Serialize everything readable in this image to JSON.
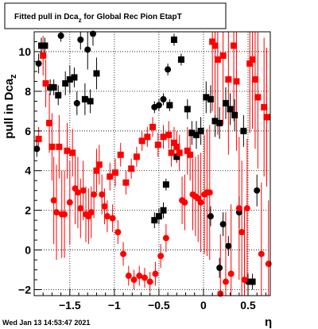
{
  "chart_data": {
    "type": "scatter",
    "title": "Fitted pull in Dca",
    "title_subscript": "z",
    "title_suffix": " for Global Rec Pion EtapT",
    "ylabel": "pull in Dca",
    "ylabel_subscript": "z",
    "xlabel": "η",
    "timestamp": "Wed Jan 13 14:53:47 2021",
    "xlim": [
      -1.9,
      0.75
    ],
    "ylim": [
      -2.3,
      11.0
    ],
    "x_ticks": [
      -1.5,
      -1,
      -0.5,
      0,
      0.5
    ],
    "x_tick_labels": [
      "−1.5",
      "−1",
      "−0.5",
      "0",
      "0.5"
    ],
    "y_ticks": [
      -2,
      0,
      2,
      4,
      6,
      8,
      10
    ],
    "y_tick_labels": [
      "−2",
      "0",
      "2",
      "4",
      "6",
      "8",
      "10"
    ],
    "grid": true,
    "series": [
      {
        "color": "#000000",
        "points": [
          {
            "x": -1.87,
            "y": 5.1,
            "err": 0.4,
            "marker": "circle"
          },
          {
            "x": -1.85,
            "y": 9.4,
            "err": 0.5,
            "marker": "circle"
          },
          {
            "x": -1.82,
            "y": 10.3,
            "err": 0.4,
            "marker": "square"
          },
          {
            "x": -1.78,
            "y": 10.3,
            "err": 0.4,
            "marker": "square"
          },
          {
            "x": -1.72,
            "y": 8.2,
            "err": 0.4,
            "marker": "square"
          },
          {
            "x": -1.68,
            "y": 8.2,
            "err": 0.4,
            "marker": "square"
          },
          {
            "x": -1.63,
            "y": 7.8,
            "err": 0.5,
            "marker": "square"
          },
          {
            "x": -1.6,
            "y": 10.8,
            "err": 0.3,
            "marker": "circle"
          },
          {
            "x": -1.55,
            "y": 8.4,
            "err": 0.6,
            "marker": "square"
          },
          {
            "x": -1.5,
            "y": 8.6,
            "err": 0.7,
            "marker": "square"
          },
          {
            "x": -1.45,
            "y": 8.7,
            "err": 0.5,
            "marker": "square"
          },
          {
            "x": -1.42,
            "y": 7.4,
            "err": 0.6,
            "marker": "circle"
          },
          {
            "x": -1.38,
            "y": 10.6,
            "err": 0.5,
            "marker": "circle"
          },
          {
            "x": -1.33,
            "y": 7.6,
            "err": 0.8,
            "marker": "square"
          },
          {
            "x": -1.3,
            "y": 10.1,
            "err": 1.0,
            "marker": "circle"
          },
          {
            "x": -1.27,
            "y": 7.5,
            "err": 0.6,
            "marker": "square"
          },
          {
            "x": -1.24,
            "y": 10.9,
            "err": 0.6,
            "marker": "circle"
          },
          {
            "x": -1.2,
            "y": 8.9,
            "err": 0.8,
            "marker": "square"
          },
          {
            "x": -0.55,
            "y": 1.5,
            "err": 0.4,
            "marker": "square"
          },
          {
            "x": -0.5,
            "y": 1.7,
            "err": 0.4,
            "marker": "square"
          },
          {
            "x": -0.45,
            "y": 2.0,
            "err": 0.4,
            "marker": "square"
          },
          {
            "x": -0.42,
            "y": 3.3,
            "err": 0.3,
            "marker": "square"
          },
          {
            "x": -0.55,
            "y": 7.2,
            "err": 0.3,
            "marker": "circle"
          },
          {
            "x": -0.5,
            "y": 7.3,
            "err": 0.3,
            "marker": "circle"
          },
          {
            "x": -0.45,
            "y": 7.6,
            "err": 0.3,
            "marker": "circle"
          },
          {
            "x": -0.4,
            "y": 9.1,
            "err": 0.3,
            "marker": "circle"
          },
          {
            "x": -0.38,
            "y": 7.3,
            "err": 0.3,
            "marker": "square"
          },
          {
            "x": -0.33,
            "y": 10.6,
            "err": 0.3,
            "marker": "square"
          },
          {
            "x": -0.3,
            "y": 4.7,
            "err": 0.3,
            "marker": "square"
          },
          {
            "x": -0.25,
            "y": 9.6,
            "err": 0.3,
            "marker": "square"
          },
          {
            "x": -0.18,
            "y": 7.1,
            "err": 0.5,
            "marker": "square"
          },
          {
            "x": -0.13,
            "y": 5.9,
            "err": 0.6,
            "marker": "square"
          },
          {
            "x": -0.08,
            "y": 5.8,
            "err": 0.7,
            "marker": "square"
          },
          {
            "x": -0.03,
            "y": 6.0,
            "err": 0.7,
            "marker": "square"
          },
          {
            "x": 0.03,
            "y": 7.7,
            "err": 0.8,
            "marker": "square"
          },
          {
            "x": 0.08,
            "y": 7.6,
            "err": 0.7,
            "marker": "square"
          },
          {
            "x": 0.08,
            "y": 1.7,
            "err": 0.5,
            "marker": "circle"
          },
          {
            "x": 0.13,
            "y": 6.5,
            "err": 0.8,
            "marker": "square"
          },
          {
            "x": 0.18,
            "y": 6.4,
            "err": 0.8,
            "marker": "square"
          },
          {
            "x": 0.18,
            "y": -0.9,
            "err": 0.5,
            "marker": "circle"
          },
          {
            "x": 0.22,
            "y": 1.3,
            "err": 0.6,
            "marker": "circle"
          },
          {
            "x": 0.25,
            "y": 7.4,
            "err": 0.8,
            "marker": "square"
          },
          {
            "x": 0.28,
            "y": 0.2,
            "err": 0.5,
            "marker": "circle"
          },
          {
            "x": 0.3,
            "y": 7.1,
            "err": 0.8,
            "marker": "square"
          },
          {
            "x": 0.35,
            "y": 6.8,
            "err": 0.8,
            "marker": "square"
          },
          {
            "x": 0.4,
            "y": 1.9,
            "err": 0.8,
            "marker": "circle"
          },
          {
            "x": 0.45,
            "y": 6.0,
            "err": 0.8,
            "marker": "square"
          },
          {
            "x": 0.5,
            "y": -1.6,
            "err": 0.4,
            "marker": "circle"
          },
          {
            "x": 0.55,
            "y": -1.6,
            "err": 0.4,
            "marker": "square"
          },
          {
            "x": 0.6,
            "y": 3.0,
            "err": 0.8,
            "marker": "circle"
          }
        ]
      },
      {
        "color": "#ff0000",
        "points": [
          {
            "x": -1.85,
            "y": 5.6,
            "err": 0.6,
            "marker": "square"
          },
          {
            "x": -1.8,
            "y": 9.8,
            "err": 1.0,
            "marker": "square"
          },
          {
            "x": -1.77,
            "y": 8.4,
            "err": 1.2,
            "marker": "square"
          },
          {
            "x": -1.73,
            "y": 6.4,
            "err": 1.5,
            "marker": "square"
          },
          {
            "x": -1.7,
            "y": 5.2,
            "err": 1.7,
            "marker": "square"
          },
          {
            "x": -1.68,
            "y": 2.5,
            "err": 2.2,
            "marker": "circle"
          },
          {
            "x": -1.65,
            "y": 1.9,
            "err": 2.4,
            "marker": "circle"
          },
          {
            "x": -1.62,
            "y": 5.2,
            "err": 1.6,
            "marker": "square"
          },
          {
            "x": -1.59,
            "y": 1.8,
            "err": 2.2,
            "marker": "circle"
          },
          {
            "x": -1.56,
            "y": 1.8,
            "err": 2.2,
            "marker": "circle"
          },
          {
            "x": -1.53,
            "y": 5.0,
            "err": 1.4,
            "marker": "square"
          },
          {
            "x": -1.5,
            "y": 2.4,
            "err": 2.1,
            "marker": "circle"
          },
          {
            "x": -1.47,
            "y": 4.9,
            "err": 1.2,
            "marker": "square"
          },
          {
            "x": -1.44,
            "y": 3.1,
            "err": 1.8,
            "marker": "circle"
          },
          {
            "x": -1.41,
            "y": 2.9,
            "err": 1.8,
            "marker": "circle"
          },
          {
            "x": -1.38,
            "y": 2.1,
            "err": 1.5,
            "marker": "circle"
          },
          {
            "x": -1.35,
            "y": 3.0,
            "err": 1.5,
            "marker": "circle"
          },
          {
            "x": -1.32,
            "y": 1.8,
            "err": 1.4,
            "marker": "circle"
          },
          {
            "x": -1.29,
            "y": 1.7,
            "err": 1.4,
            "marker": "circle"
          },
          {
            "x": -1.26,
            "y": 1.9,
            "err": 1.3,
            "marker": "circle"
          },
          {
            "x": -1.23,
            "y": 2.8,
            "err": 1.2,
            "marker": "circle"
          },
          {
            "x": -1.2,
            "y": 4.0,
            "err": 1.1,
            "marker": "square"
          },
          {
            "x": -1.17,
            "y": 4.3,
            "err": 1.0,
            "marker": "square"
          },
          {
            "x": -1.14,
            "y": 2.8,
            "err": 1.0,
            "marker": "circle"
          },
          {
            "x": -1.11,
            "y": 2.2,
            "err": 0.9,
            "marker": "circle"
          },
          {
            "x": -1.08,
            "y": 1.7,
            "err": 0.8,
            "marker": "circle"
          },
          {
            "x": -1.05,
            "y": 3.7,
            "err": 0.7,
            "marker": "square"
          },
          {
            "x": -1.02,
            "y": 1.6,
            "err": 0.7,
            "marker": "circle"
          },
          {
            "x": -0.99,
            "y": 3.9,
            "err": 0.7,
            "marker": "square"
          },
          {
            "x": -0.96,
            "y": 0.9,
            "err": 0.6,
            "marker": "circle"
          },
          {
            "x": -0.93,
            "y": 4.8,
            "err": 0.6,
            "marker": "square"
          },
          {
            "x": -0.9,
            "y": -0.2,
            "err": 0.6,
            "marker": "circle"
          },
          {
            "x": -0.87,
            "y": 3.4,
            "err": 0.6,
            "marker": "square"
          },
          {
            "x": -0.84,
            "y": -1.3,
            "err": 0.5,
            "marker": "circle"
          },
          {
            "x": -0.81,
            "y": 4.1,
            "err": 0.5,
            "marker": "square"
          },
          {
            "x": -0.78,
            "y": -1.5,
            "err": 0.5,
            "marker": "circle"
          },
          {
            "x": -0.75,
            "y": 4.7,
            "err": 0.5,
            "marker": "square"
          },
          {
            "x": -0.72,
            "y": -1.3,
            "err": 0.5,
            "marker": "circle"
          },
          {
            "x": -0.69,
            "y": 5.5,
            "err": 0.5,
            "marker": "square"
          },
          {
            "x": -0.66,
            "y": -1.4,
            "err": 0.5,
            "marker": "circle"
          },
          {
            "x": -0.63,
            "y": 5.7,
            "err": 0.5,
            "marker": "square"
          },
          {
            "x": -0.6,
            "y": -1.6,
            "err": 0.5,
            "marker": "circle"
          },
          {
            "x": -0.57,
            "y": 6.2,
            "err": 0.5,
            "marker": "square"
          },
          {
            "x": -0.54,
            "y": -1.2,
            "err": 0.6,
            "marker": "circle"
          },
          {
            "x": -0.51,
            "y": 5.3,
            "err": 0.6,
            "marker": "square"
          },
          {
            "x": -0.48,
            "y": -0.3,
            "err": 0.6,
            "marker": "circle"
          },
          {
            "x": -0.45,
            "y": 5.7,
            "err": 0.6,
            "marker": "square"
          },
          {
            "x": -0.42,
            "y": 0.6,
            "err": 0.7,
            "marker": "circle"
          },
          {
            "x": -0.39,
            "y": 5.8,
            "err": 0.7,
            "marker": "square"
          },
          {
            "x": -0.36,
            "y": 4.9,
            "err": 0.7,
            "marker": "square"
          },
          {
            "x": -0.33,
            "y": 5.4,
            "err": 0.8,
            "marker": "square"
          },
          {
            "x": -0.3,
            "y": 5.2,
            "err": 0.8,
            "marker": "square"
          },
          {
            "x": -0.27,
            "y": 4.9,
            "err": 0.9,
            "marker": "square"
          },
          {
            "x": -0.24,
            "y": 2.5,
            "err": 1.2,
            "marker": "circle"
          },
          {
            "x": -0.21,
            "y": 2.4,
            "err": 1.4,
            "marker": "circle"
          },
          {
            "x": -0.18,
            "y": 5.0,
            "err": 1.2,
            "marker": "square"
          },
          {
            "x": -0.15,
            "y": 4.8,
            "err": 1.3,
            "marker": "square"
          },
          {
            "x": -0.12,
            "y": 2.8,
            "err": 1.8,
            "marker": "circle"
          },
          {
            "x": -0.09,
            "y": 2.7,
            "err": 2.0,
            "marker": "circle"
          },
          {
            "x": -0.06,
            "y": 2.6,
            "err": 2.2,
            "marker": "circle"
          },
          {
            "x": -0.03,
            "y": 2.4,
            "err": 2.5,
            "marker": "circle"
          },
          {
            "x": 0.01,
            "y": 2.8,
            "err": 3.0,
            "marker": "circle"
          },
          {
            "x": 0.04,
            "y": 2.9,
            "err": 3.2,
            "marker": "circle"
          },
          {
            "x": 0.07,
            "y": 2.9,
            "err": 3.4,
            "marker": "circle"
          },
          {
            "x": 0.1,
            "y": 10.5,
            "err": 3.5,
            "marker": "square"
          },
          {
            "x": 0.13,
            "y": 10.3,
            "err": 3.5,
            "marker": "square"
          },
          {
            "x": 0.16,
            "y": 9.6,
            "err": 3.8,
            "marker": "square"
          },
          {
            "x": 0.19,
            "y": -2.2,
            "err": 3.0,
            "marker": "circle"
          },
          {
            "x": 0.22,
            "y": 9.8,
            "err": 3.5,
            "marker": "square"
          },
          {
            "x": 0.25,
            "y": -1.6,
            "err": 3.5,
            "marker": "circle"
          },
          {
            "x": 0.28,
            "y": 8.6,
            "err": 3.8,
            "marker": "square"
          },
          {
            "x": 0.31,
            "y": -1.2,
            "err": 3.5,
            "marker": "circle"
          },
          {
            "x": 0.34,
            "y": 10.3,
            "err": 3.8,
            "marker": "square"
          },
          {
            "x": 0.37,
            "y": 8.5,
            "err": 3.5,
            "marker": "square"
          },
          {
            "x": 0.4,
            "y": 2.1,
            "err": 3.6,
            "marker": "circle"
          },
          {
            "x": 0.43,
            "y": 0.9,
            "err": 3.6,
            "marker": "circle"
          },
          {
            "x": 0.46,
            "y": -1.5,
            "err": 3.5,
            "marker": "circle"
          },
          {
            "x": 0.49,
            "y": 2.1,
            "err": 3.5,
            "marker": "circle"
          },
          {
            "x": 0.52,
            "y": 9.4,
            "err": 3.5,
            "marker": "square"
          },
          {
            "x": 0.55,
            "y": 9.6,
            "err": 3.5,
            "marker": "square"
          },
          {
            "x": 0.58,
            "y": 8.6,
            "err": 3.5,
            "marker": "square"
          },
          {
            "x": 0.61,
            "y": 7.7,
            "err": 3.6,
            "marker": "square"
          },
          {
            "x": 0.65,
            "y": -0.2,
            "err": 3.6,
            "marker": "circle"
          },
          {
            "x": 0.68,
            "y": 7.2,
            "err": 3.5,
            "marker": "square"
          },
          {
            "x": 0.71,
            "y": 6.7,
            "err": 3.5,
            "marker": "square"
          },
          {
            "x": 0.73,
            "y": -0.7,
            "err": 3.2,
            "marker": "circle"
          }
        ]
      }
    ]
  }
}
